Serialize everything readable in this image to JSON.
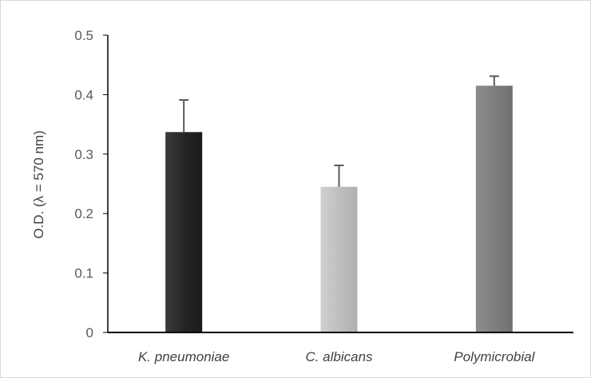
{
  "chart_data": {
    "type": "bar",
    "title": "",
    "xlabel": "",
    "ylabel": "O.D. (λ = 570 nm)",
    "categories": [
      "K. pneumoniae",
      "C. albicans",
      "Polymicrobial"
    ],
    "values": [
      0.337,
      0.245,
      0.415
    ],
    "errors": [
      0.054,
      0.036,
      0.016
    ],
    "ylim": [
      0,
      0.5
    ],
    "yticks": [
      "0",
      "0.1",
      "0.2",
      "0.3",
      "0.4",
      "0.5"
    ],
    "grid": false,
    "legend": "none",
    "bar_colors": [
      "#262626",
      "#bfbfbf",
      "#7f7f7f"
    ],
    "axis_color": "#000000",
    "error_bar_color": "#595959"
  }
}
